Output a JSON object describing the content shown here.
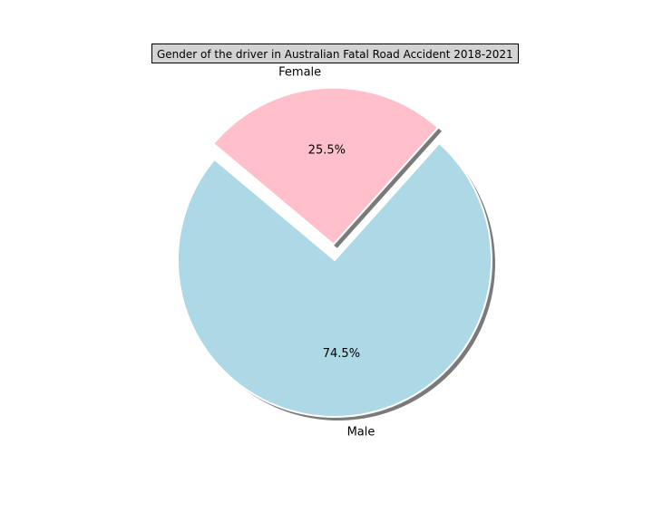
{
  "chart_data": {
    "type": "pie",
    "title": "Gender of the driver in Australian Fatal Road Accident 2018-2021",
    "slices": [
      {
        "label": "Male",
        "value": 74.5,
        "pct_label": "74.5%",
        "color": "#add8e6",
        "explode": 0.0
      },
      {
        "label": "Female",
        "value": 25.5,
        "pct_label": "25.5%",
        "color": "#ffc0cb",
        "explode": 0.1
      }
    ],
    "start_angle_deg": 140,
    "shadow": true,
    "legend": "none"
  }
}
